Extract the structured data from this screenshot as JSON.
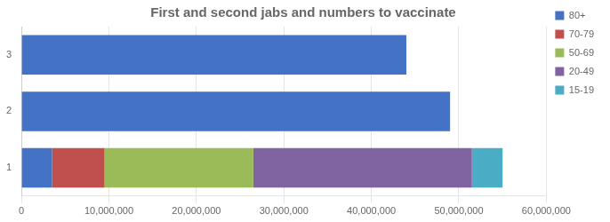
{
  "chart_data": {
    "type": "bar",
    "orientation": "horizontal",
    "stacked": true,
    "title": "First and second jabs and numbers to vaccinate",
    "categories": [
      "1",
      "2",
      "3"
    ],
    "series": [
      {
        "name": "80+",
        "color": "#4472C4",
        "values": [
          3500000,
          49000000,
          44000000
        ]
      },
      {
        "name": "70-79",
        "color": "#C0504D",
        "values": [
          6000000,
          0,
          0
        ]
      },
      {
        "name": "50-69",
        "color": "#9BBB59",
        "values": [
          17000000,
          0,
          0
        ]
      },
      {
        "name": "20-49",
        "color": "#8064A2",
        "values": [
          25000000,
          0,
          0
        ]
      },
      {
        "name": "15-19",
        "color": "#4BACC6",
        "values": [
          3500000,
          0,
          0
        ]
      }
    ],
    "xlim": [
      0,
      60000000
    ],
    "xticks": [
      0,
      {
        "value": 10000000,
        "label": "10,000,000"
      },
      {
        "value": 20000000,
        "label": "20,000,000"
      },
      {
        "value": 30000000,
        "label": "30,000,000"
      },
      {
        "value": 40000000,
        "label": "40,000,000"
      },
      {
        "value": 50000000,
        "label": "50,000,000"
      },
      {
        "value": 60000000,
        "label": "60,000,000"
      }
    ],
    "grid": true,
    "legend": "right"
  }
}
